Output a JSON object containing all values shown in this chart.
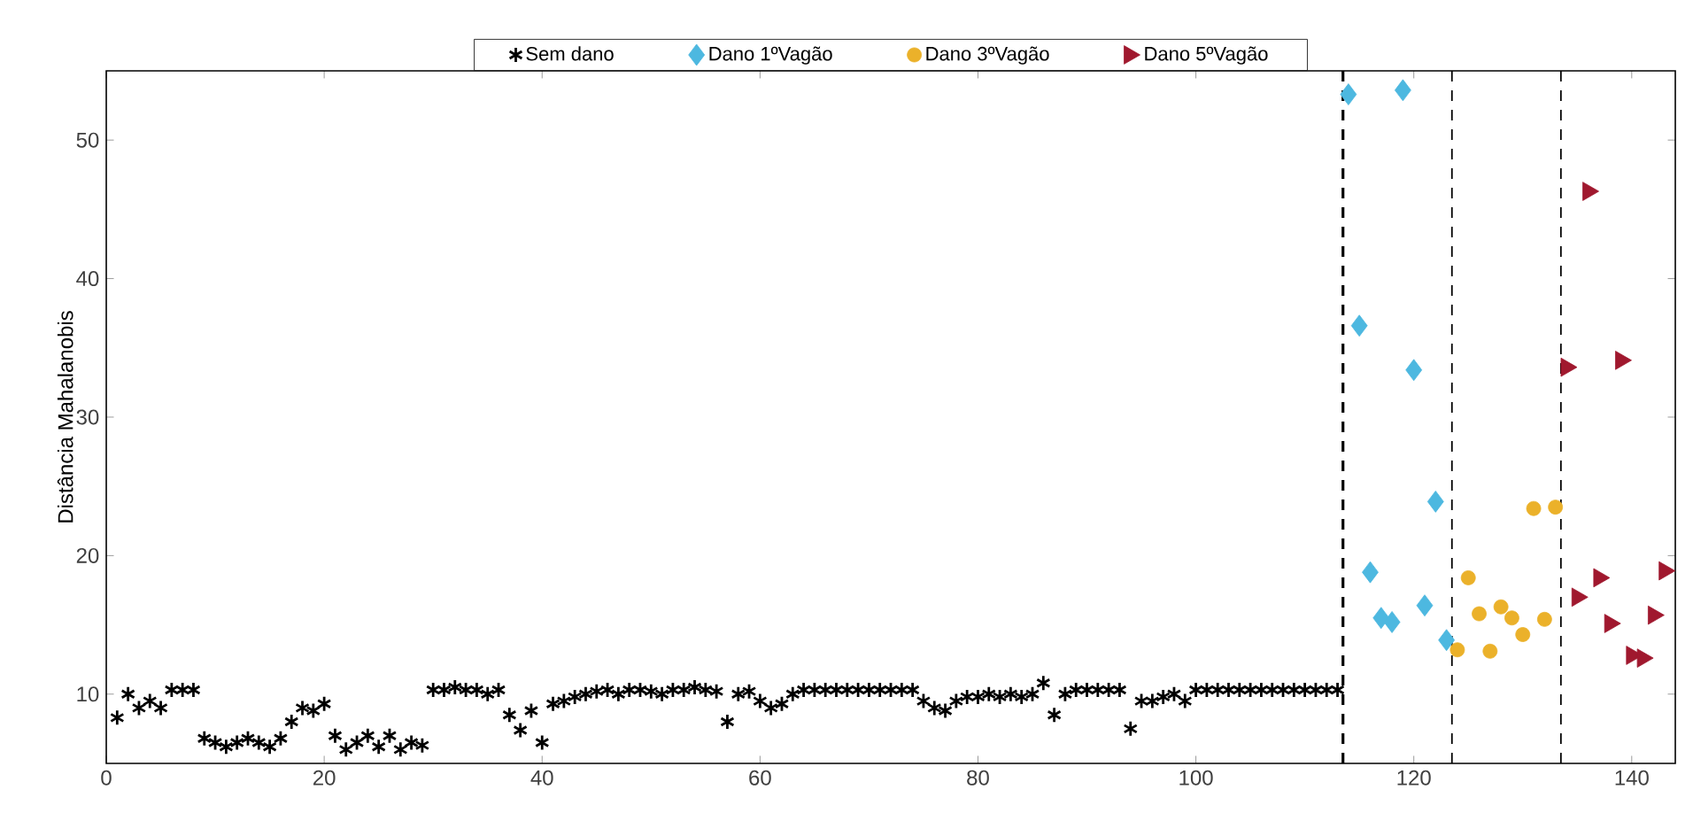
{
  "chart_data": {
    "type": "scatter",
    "ylabel": "Distância Mahalanobis",
    "xlim": [
      0,
      144
    ],
    "ylim": [
      5,
      55
    ],
    "xticks": [
      0,
      20,
      40,
      60,
      80,
      100,
      120,
      140
    ],
    "yticks": [
      10,
      20,
      30,
      40,
      50
    ],
    "grid": false,
    "legend": "top",
    "ref_lines": [
      {
        "axis": "x",
        "value": 113.5,
        "color": "#000000",
        "line_style": "dashed"
      },
      {
        "axis": "x",
        "value": 123.5,
        "color": "#000000",
        "line_style": "dashed"
      },
      {
        "axis": "x",
        "value": 133.5,
        "color": "#000000",
        "line_style": "dashed"
      }
    ],
    "series": [
      {
        "name": "Sem dano",
        "color": "#000000",
        "marker": "cross",
        "x": [
          1,
          2,
          3,
          4,
          5,
          6,
          7,
          8,
          9,
          10,
          11,
          12,
          13,
          14,
          15,
          16,
          17,
          18,
          19,
          20,
          21,
          22,
          23,
          24,
          25,
          26,
          27,
          28,
          29,
          30,
          31,
          32,
          33,
          34,
          35,
          36,
          37,
          38,
          39,
          40,
          41,
          42,
          43,
          44,
          45,
          46,
          47,
          48,
          49,
          50,
          51,
          52,
          53,
          54,
          55,
          56,
          57,
          58,
          59,
          60,
          61,
          62,
          63,
          64,
          65,
          66,
          67,
          68,
          69,
          70,
          71,
          72,
          73,
          74,
          75,
          76,
          77,
          78,
          79,
          80,
          81,
          82,
          83,
          84,
          85,
          86,
          87,
          88,
          89,
          90,
          91,
          92,
          93,
          94,
          95,
          96,
          97,
          98,
          99,
          100,
          101,
          102,
          103,
          104,
          105,
          106,
          107,
          108,
          109,
          110,
          111,
          112,
          113
        ],
        "values": [
          8.3,
          10,
          9,
          9.5,
          9,
          10.3,
          10.3,
          10.3,
          6.8,
          6.5,
          6.2,
          6.5,
          6.8,
          6.5,
          6.2,
          6.8,
          8,
          9,
          8.8,
          9.3,
          7,
          6,
          6.5,
          7,
          6.2,
          7,
          6,
          6.5,
          6.3,
          10.3,
          10.3,
          10.5,
          10.3,
          10.3,
          10,
          10.3,
          8.5,
          7.4,
          8.8,
          6.5,
          9.3,
          9.5,
          9.8,
          10,
          10.2,
          10.3,
          10,
          10.3,
          10.3,
          10.2,
          10,
          10.3,
          10.3,
          10.5,
          10.3,
          10.2,
          8,
          10,
          10.2,
          9.5,
          9,
          9.3,
          10,
          10.3,
          10.3,
          10.3,
          10.3,
          10.3,
          10.3,
          10.3,
          10.3,
          10.3,
          10.3,
          10.3,
          9.5,
          9,
          8.8,
          9.5,
          9.8,
          9.8,
          10,
          9.8,
          10,
          9.8,
          10,
          10.8,
          8.5,
          10,
          10.3,
          10.3,
          10.3,
          10.3,
          10.3,
          7.5,
          9.5,
          9.5,
          9.8,
          10,
          9.5,
          10.3,
          10.3,
          10.3,
          10.3,
          10.3,
          10.3,
          10.3,
          10.3,
          10.3,
          10.3,
          10.3,
          10.3,
          10.3,
          10.3
        ]
      },
      {
        "name": "Dano 1ºVagão",
        "color": "#4db8e0",
        "marker": "diamond",
        "x": [
          114,
          115,
          116,
          117,
          118,
          119,
          120,
          121,
          122,
          123
        ],
        "values": [
          53.3,
          36.6,
          18.8,
          15.5,
          15.2,
          53.6,
          33.4,
          16.4,
          23.9,
          13.9
        ]
      },
      {
        "name": "Dano 3ºVagão",
        "color": "#ebb12a",
        "marker": "circle",
        "x": [
          124,
          125,
          126,
          127,
          128,
          129,
          130,
          131,
          132,
          133
        ],
        "values": [
          13.2,
          18.4,
          15.8,
          13.1,
          16.3,
          15.5,
          14.3,
          23.4,
          15.4,
          23.5
        ]
      },
      {
        "name": "Dano 5ºVagão",
        "color": "#a0182e",
        "marker": "triangle",
        "x": [
          134,
          135,
          136,
          137,
          138,
          139,
          140,
          141,
          142,
          143
        ],
        "values": [
          33.6,
          17.0,
          46.3,
          18.4,
          15.1,
          34.1,
          12.8,
          12.6,
          15.7,
          18.9
        ]
      }
    ]
  }
}
